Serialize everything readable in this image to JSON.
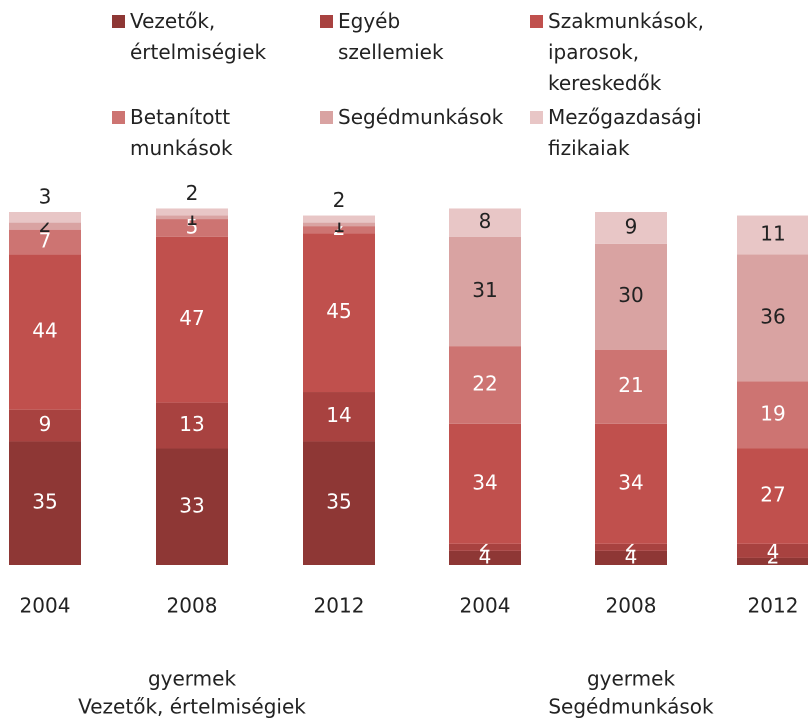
{
  "chart_data": {
    "type": "stacked_bar",
    "categories": [
      "2004",
      "2008",
      "2012",
      "2004",
      "2008",
      "2012"
    ],
    "groups": [
      [
        "gyermek",
        "Vezetők, értelmiségiek"
      ],
      [
        "gyermek",
        "Segédmunkások"
      ]
    ],
    "ylim": [
      0,
      100
    ],
    "series": [
      {
        "name": "Vezetők, értelmiségiek",
        "color": "#8e3735",
        "values": [
          35,
          33,
          35,
          4,
          4,
          2
        ]
      },
      {
        "name": "Egyéb szellemiek",
        "color": "#a84240",
        "values": [
          9,
          13,
          14,
          2,
          2,
          4
        ]
      },
      {
        "name": "Szakmunkások, iparosok, kereskedők",
        "color": "#c0504d",
        "values": [
          44,
          47,
          45,
          34,
          34,
          27
        ]
      },
      {
        "name": "Betanított munkások",
        "color": "#cd7472",
        "values": [
          7,
          5,
          2,
          22,
          21,
          19
        ]
      },
      {
        "name": "Segédmunkások",
        "color": "#d9a3a2",
        "values": [
          2,
          1,
          1,
          31,
          30,
          36
        ]
      },
      {
        "name": "Mezőgazdasági fizikaiak",
        "color": "#e8c6c6",
        "values": [
          3,
          2,
          2,
          8,
          9,
          11
        ]
      }
    ]
  }
}
